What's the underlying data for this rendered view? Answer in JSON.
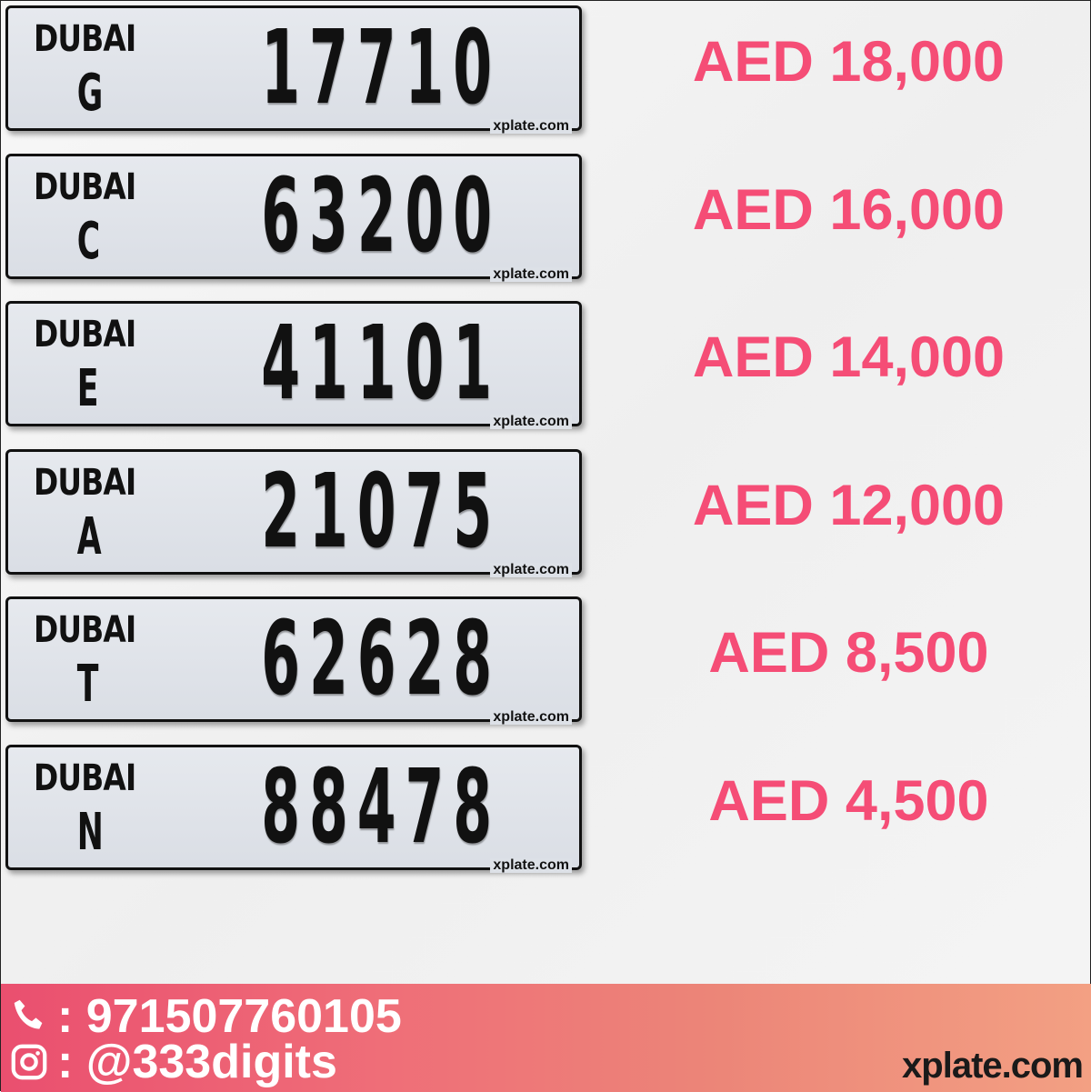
{
  "plates": [
    {
      "emirate_logo": "DUBAI",
      "code": "G",
      "number": "17710",
      "watermark": "xplate.com",
      "price": "AED 18,000"
    },
    {
      "emirate_logo": "DUBAI",
      "code": "C",
      "number": "63200",
      "watermark": "xplate.com",
      "price": "AED 16,000"
    },
    {
      "emirate_logo": "DUBAI",
      "code": "E",
      "number": "41101",
      "watermark": "xplate.com",
      "price": "AED 14,000"
    },
    {
      "emirate_logo": "DUBAI",
      "code": "A",
      "number": "21075",
      "watermark": "xplate.com",
      "price": "AED 12,000"
    },
    {
      "emirate_logo": "DUBAI",
      "code": "T",
      "number": "62628",
      "watermark": "xplate.com",
      "price": "AED 8,500"
    },
    {
      "emirate_logo": "DUBAI",
      "code": "N",
      "number": "88478",
      "watermark": "xplate.com",
      "price": "AED 4,500"
    }
  ],
  "footer": {
    "phone_icon": "phone-icon",
    "phone": ": 971507760105",
    "instagram_icon": "instagram-icon",
    "instagram": ": @333digits",
    "site": "xplate.com"
  },
  "colors": {
    "price": "#f54d76",
    "footer_start": "#ea4f6f",
    "footer_end": "#f3a083"
  }
}
